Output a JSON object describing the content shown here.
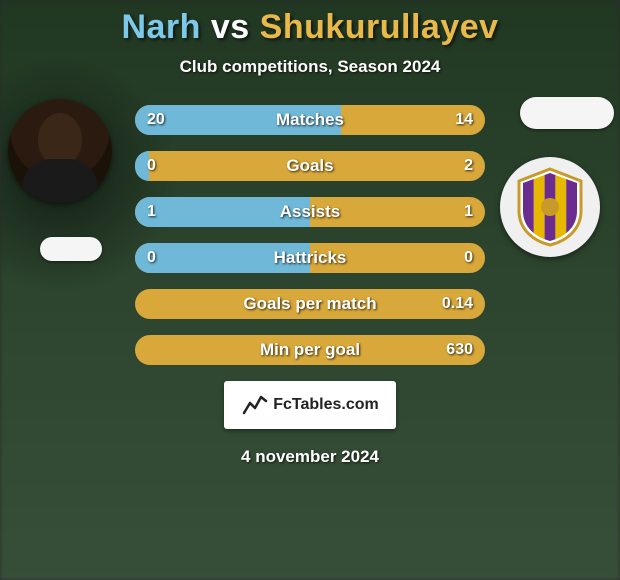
{
  "title": {
    "player1": "Narh",
    "vs": "vs",
    "player2": "Shukurullayev",
    "player1_color": "#7fc9e8",
    "vs_color": "#ffffff",
    "player2_color": "#e8b94a",
    "fontsize": 34
  },
  "subtitle": "Club competitions, Season 2024",
  "colors": {
    "left_accent": "#7fc9e8",
    "right_accent": "#e8b94a",
    "bar_track": "#d9a83a",
    "bar_left_fill": "#6fb8d8",
    "background_overlay": "rgba(0,0,0,0.25)"
  },
  "bars": {
    "height": 30,
    "spacing": 16,
    "border_radius": 15,
    "label_fontsize": 17,
    "value_fontsize": 16,
    "rows": [
      {
        "label": "Matches",
        "left": "20",
        "right": "14",
        "left_num": 20,
        "right_num": 14
      },
      {
        "label": "Goals",
        "left": "0",
        "right": "2",
        "left_num": 0,
        "right_num": 2
      },
      {
        "label": "Assists",
        "left": "1",
        "right": "1",
        "left_num": 1,
        "right_num": 1
      },
      {
        "label": "Hattricks",
        "left": "0",
        "right": "0",
        "left_num": 0,
        "right_num": 0
      },
      {
        "label": "Goals per match",
        "left": "",
        "right": "0.14",
        "left_num": 0,
        "right_num": 0.14
      },
      {
        "label": "Min per goal",
        "left": "",
        "right": "630",
        "left_num": 0,
        "right_num": 630
      }
    ]
  },
  "crest": {
    "stripe_colors": [
      "#6a2d8f",
      "#e6b800",
      "#6a2d8f",
      "#e6b800",
      "#6a2d8f"
    ],
    "border_color": "#c79a2a",
    "ball_color": "#c79a2a"
  },
  "watermark": {
    "text": "FcTables.com",
    "icon_name": "chart-line-icon"
  },
  "date": "4 november 2024"
}
